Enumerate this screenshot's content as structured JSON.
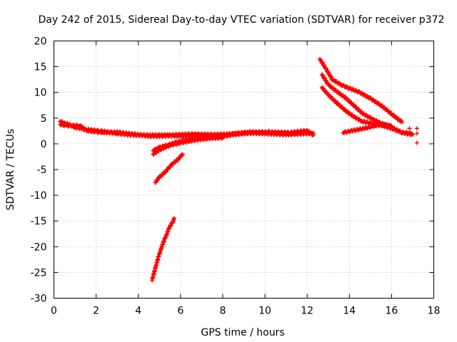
{
  "chart_data": {
    "type": "scatter",
    "title": "Day 242 of 2015, Sidereal Day-to-day VTEC variation (SDTVAR) for receiver p372",
    "xlabel": "GPS time / hours",
    "ylabel": "SDTVAR / TECUs",
    "xlim": [
      0,
      18
    ],
    "ylim": [
      -30,
      20
    ],
    "x_ticks": [
      0,
      2,
      4,
      6,
      8,
      10,
      12,
      14,
      16,
      18
    ],
    "y_ticks": [
      -30,
      -25,
      -20,
      -15,
      -10,
      -5,
      0,
      5,
      10,
      15,
      20
    ],
    "x_tick_labels": [
      "0",
      "2",
      "4",
      "6",
      "8",
      "10",
      "12",
      "14",
      "16",
      "18"
    ],
    "y_tick_labels": [
      "-30",
      "-25",
      "-20",
      "-15",
      "-10",
      "-5",
      "0",
      "5",
      "10",
      "15",
      "20"
    ],
    "grid": true,
    "marker": "plus",
    "color": "#ff0000",
    "series": [
      {
        "name": "band-main",
        "points": [
          [
            0.3,
            4.4
          ],
          [
            0.5,
            4.0
          ],
          [
            0.7,
            3.8
          ],
          [
            1.0,
            3.2
          ],
          [
            1.3,
            3.0
          ],
          [
            1.6,
            2.6
          ],
          [
            2.0,
            2.3
          ],
          [
            2.5,
            2.2
          ],
          [
            3.0,
            2.3
          ],
          [
            3.5,
            2.0
          ],
          [
            4.0,
            1.8
          ],
          [
            4.5,
            1.5
          ],
          [
            5.0,
            1.5
          ],
          [
            5.5,
            1.6
          ],
          [
            6.0,
            1.5
          ],
          [
            6.5,
            1.5
          ],
          [
            7.0,
            1.6
          ],
          [
            7.5,
            1.5
          ],
          [
            8.0,
            1.4
          ],
          [
            8.5,
            1.8
          ],
          [
            9.0,
            2.0
          ],
          [
            9.5,
            2.1
          ],
          [
            10.0,
            2.0
          ],
          [
            10.5,
            1.9
          ],
          [
            11.0,
            1.8
          ],
          [
            11.5,
            1.9
          ],
          [
            12.0,
            2.0
          ],
          [
            12.3,
            2.1
          ]
        ]
      },
      {
        "name": "band-upper",
        "points": [
          [
            0.3,
            3.8
          ],
          [
            0.6,
            3.5
          ],
          [
            1.2,
            3.6
          ],
          [
            1.5,
            2.8
          ],
          [
            2.2,
            2.5
          ],
          [
            3.0,
            2.0
          ],
          [
            3.8,
            1.7
          ],
          [
            4.6,
            1.7
          ],
          [
            5.5,
            1.7
          ],
          [
            6.5,
            1.9
          ],
          [
            7.5,
            1.8
          ],
          [
            8.3,
            1.9
          ],
          [
            9.2,
            2.3
          ],
          [
            10.2,
            2.3
          ],
          [
            11.2,
            2.2
          ],
          [
            12.0,
            2.6
          ],
          [
            12.3,
            1.7
          ]
        ]
      },
      {
        "name": "dip-1",
        "points": [
          [
            4.7,
            -2.0
          ],
          [
            5.0,
            -1.2
          ],
          [
            5.3,
            -0.6
          ],
          [
            5.6,
            -0.2
          ],
          [
            6.0,
            0.2
          ],
          [
            6.5,
            0.6
          ],
          [
            7.0,
            0.9
          ],
          [
            7.5,
            1.1
          ],
          [
            8.0,
            1.2
          ]
        ]
      },
      {
        "name": "dip-2",
        "points": [
          [
            4.7,
            -1.3
          ],
          [
            5.0,
            -0.7
          ],
          [
            5.4,
            -0.2
          ],
          [
            5.8,
            0.3
          ],
          [
            6.2,
            0.7
          ],
          [
            6.8,
            1.0
          ],
          [
            7.4,
            1.3
          ]
        ]
      },
      {
        "name": "dip-3",
        "points": [
          [
            4.8,
            -7.5
          ],
          [
            5.0,
            -6.5
          ],
          [
            5.3,
            -5.3
          ],
          [
            5.6,
            -4.0
          ],
          [
            5.9,
            -2.9
          ],
          [
            6.1,
            -2.0
          ]
        ]
      },
      {
        "name": "dip-4",
        "points": [
          [
            4.65,
            -26.5
          ],
          [
            4.75,
            -25.0
          ],
          [
            4.85,
            -23.5
          ],
          [
            4.95,
            -22.0
          ],
          [
            5.05,
            -20.8
          ],
          [
            5.15,
            -19.5
          ],
          [
            5.25,
            -18.5
          ],
          [
            5.35,
            -17.5
          ],
          [
            5.45,
            -16.5
          ],
          [
            5.55,
            -15.7
          ],
          [
            5.65,
            -15.0
          ],
          [
            5.7,
            -14.5
          ]
        ]
      },
      {
        "name": "arc-1",
        "points": [
          [
            12.6,
            16.5
          ],
          [
            12.9,
            14.5
          ],
          [
            13.2,
            12.5
          ],
          [
            13.6,
            11.5
          ],
          [
            14.0,
            10.8
          ],
          [
            14.5,
            10.0
          ],
          [
            15.0,
            8.8
          ],
          [
            15.5,
            7.5
          ],
          [
            16.0,
            5.8
          ],
          [
            16.5,
            4.2
          ]
        ]
      },
      {
        "name": "arc-2",
        "points": [
          [
            12.7,
            13.5
          ],
          [
            13.0,
            11.5
          ],
          [
            13.4,
            10.2
          ],
          [
            13.8,
            9.0
          ],
          [
            14.2,
            7.5
          ],
          [
            14.6,
            6.0
          ],
          [
            15.0,
            5.0
          ],
          [
            15.5,
            4.0
          ],
          [
            16.0,
            3.2
          ],
          [
            16.5,
            2.2
          ],
          [
            16.8,
            2.0
          ]
        ]
      },
      {
        "name": "arc-3",
        "points": [
          [
            12.7,
            11.0
          ],
          [
            13.0,
            9.5
          ],
          [
            13.4,
            8.0
          ],
          [
            13.8,
            6.5
          ],
          [
            14.2,
            5.3
          ],
          [
            14.6,
            4.4
          ],
          [
            15.0,
            4.0
          ],
          [
            15.5,
            3.6
          ],
          [
            16.0,
            3.0
          ],
          [
            16.5,
            2.2
          ],
          [
            17.0,
            1.8
          ]
        ]
      },
      {
        "name": "arc-4",
        "points": [
          [
            13.7,
            2.2
          ],
          [
            14.2,
            2.6
          ],
          [
            14.7,
            3.0
          ],
          [
            15.2,
            3.5
          ],
          [
            15.6,
            3.8
          ],
          [
            16.0,
            3.5
          ]
        ]
      },
      {
        "name": "scatter-end",
        "points": [
          [
            16.7,
            2.4
          ],
          [
            16.9,
            2.2
          ],
          [
            16.85,
            3.0
          ],
          [
            17.2,
            2.0
          ],
          [
            17.2,
            3.0
          ],
          [
            17.2,
            0.2
          ]
        ]
      }
    ]
  }
}
